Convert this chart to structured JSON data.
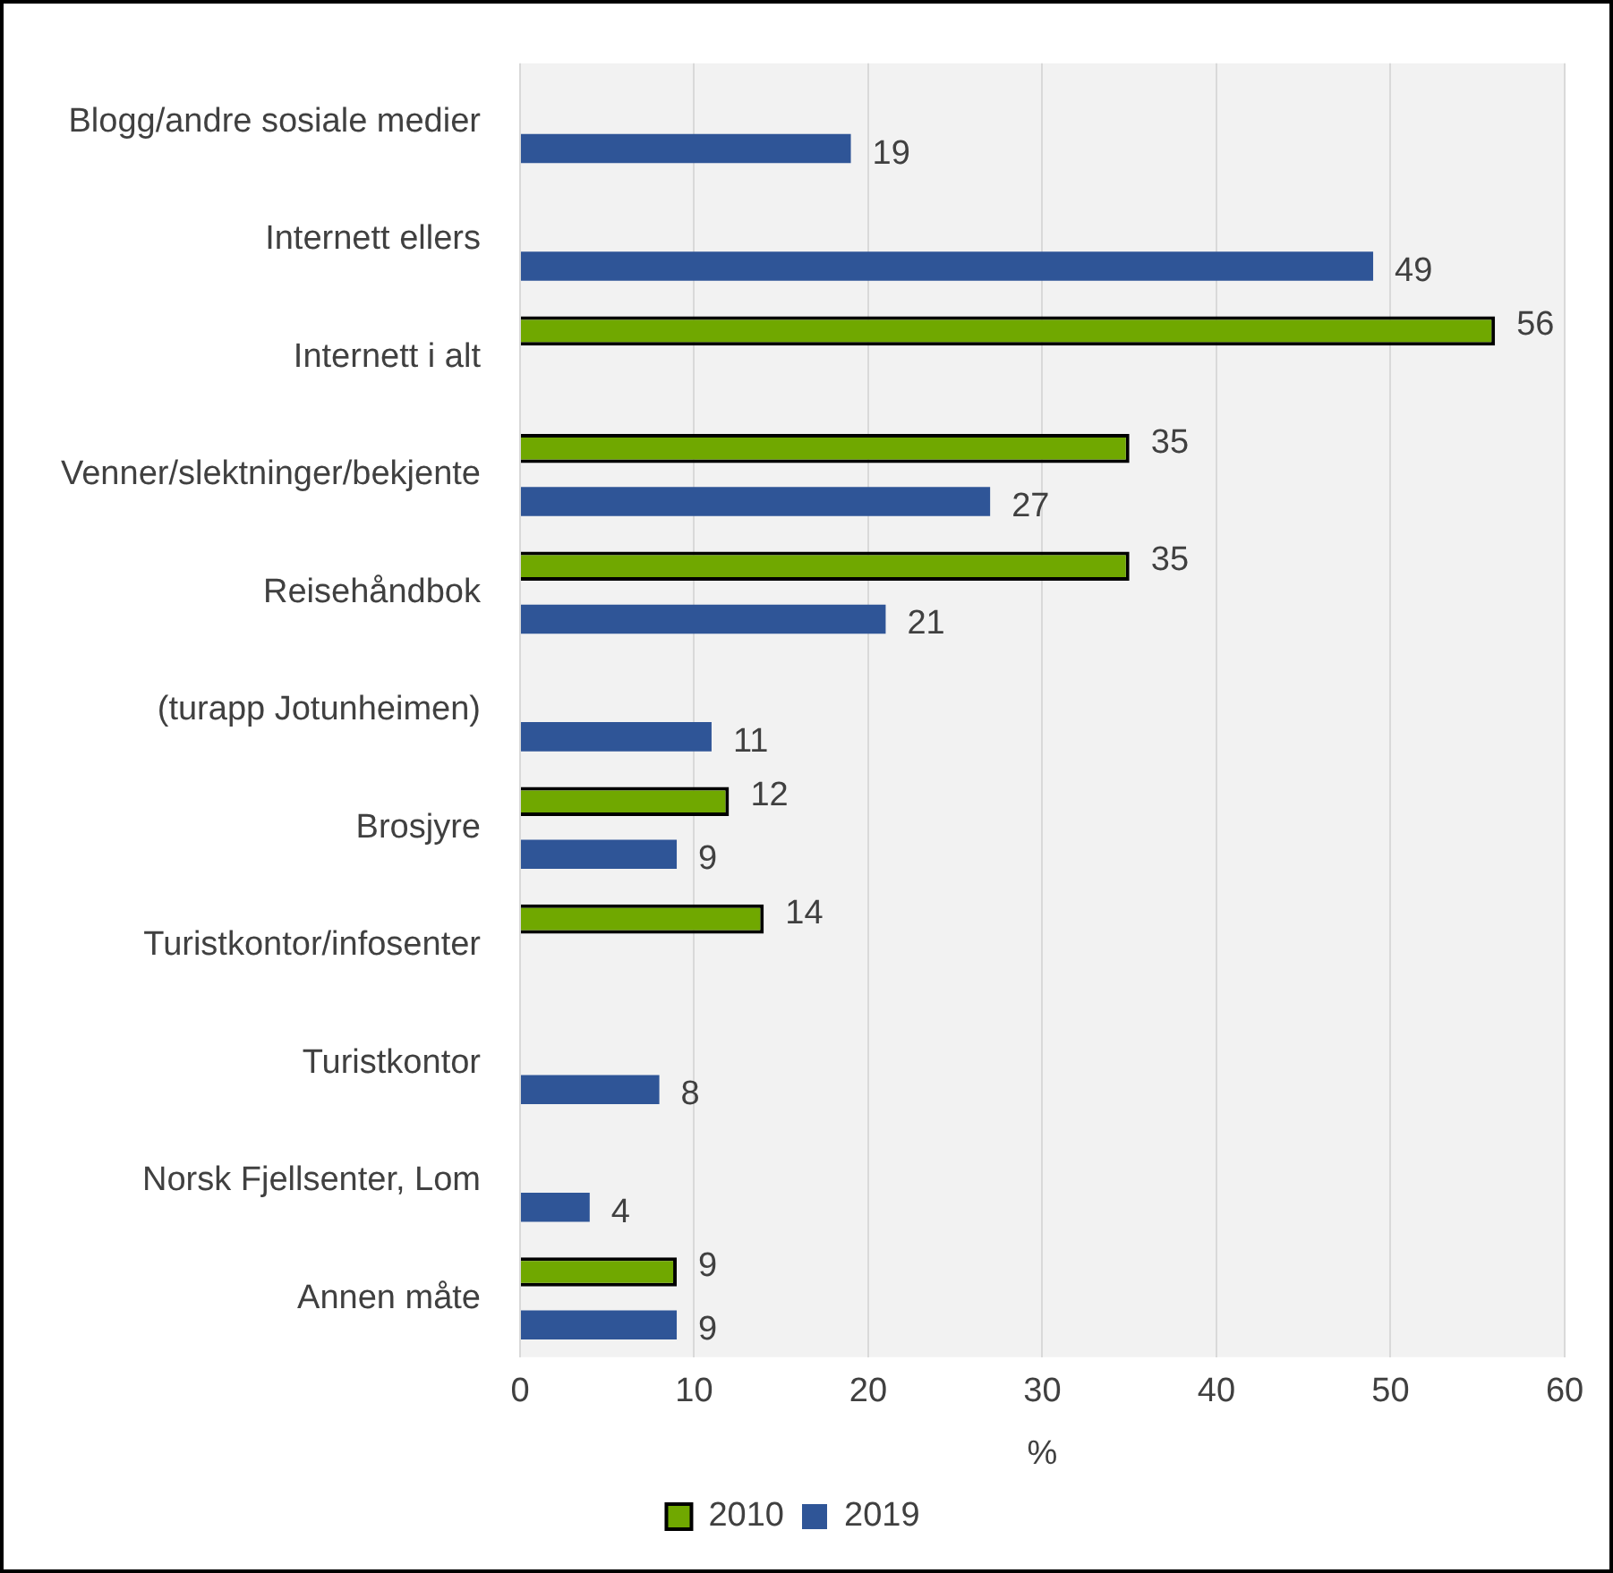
{
  "chart_data": {
    "type": "bar",
    "orientation": "horizontal",
    "xlabel": "%",
    "categories": [
      "Blogg/andre sosiale medier",
      "Internett ellers",
      "Internett i alt",
      "Venner/slektninger/bekjente",
      "Reisehåndbok",
      "(turapp Jotunheimen)",
      "Brosjyre",
      "Turistkontor/infosenter",
      "Turistkontor",
      "Norsk Fjellsenter, Lom",
      "Annen måte"
    ],
    "series": [
      {
        "name": "2010",
        "color": "#70a800",
        "values": [
          null,
          null,
          56,
          35,
          35,
          null,
          12,
          14,
          null,
          null,
          9
        ]
      },
      {
        "name": "2019",
        "color": "#2f5597",
        "values": [
          19,
          49,
          null,
          27,
          21,
          11,
          9,
          null,
          8,
          4,
          9
        ]
      }
    ],
    "xlim": [
      0,
      60
    ],
    "xticks": [
      0,
      10,
      20,
      30,
      40,
      50,
      60
    ],
    "grid": "x",
    "legend": "bottom",
    "data_labels": true
  }
}
